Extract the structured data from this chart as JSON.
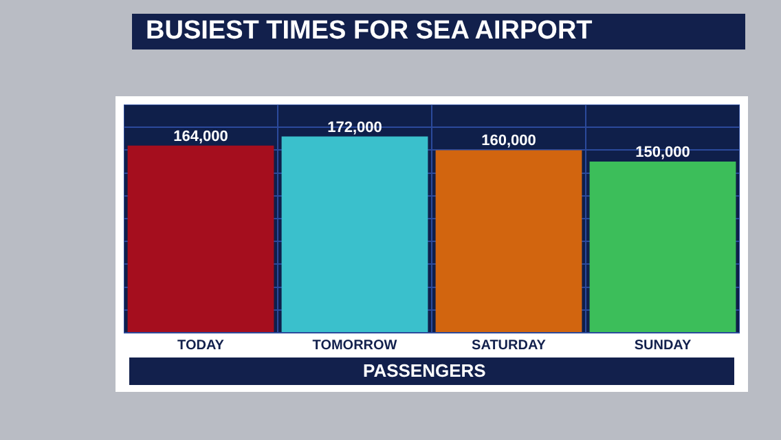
{
  "chart_data": {
    "type": "bar",
    "title": "BUSIEST TIMES FOR SEA AIRPORT",
    "xlabel": "PASSENGERS",
    "categories": [
      "TODAY",
      "TOMORROW",
      "SATURDAY",
      "SUNDAY"
    ],
    "values": [
      164000,
      172000,
      160000,
      150000
    ],
    "value_labels": [
      "164,000",
      "172,000",
      "160,000",
      "150,000"
    ],
    "colors": [
      "#a50e1e",
      "#3ac0cc",
      "#d2650f",
      "#3cbe5a"
    ],
    "tick_labels": "x",
    "grid": true,
    "legend": false
  }
}
